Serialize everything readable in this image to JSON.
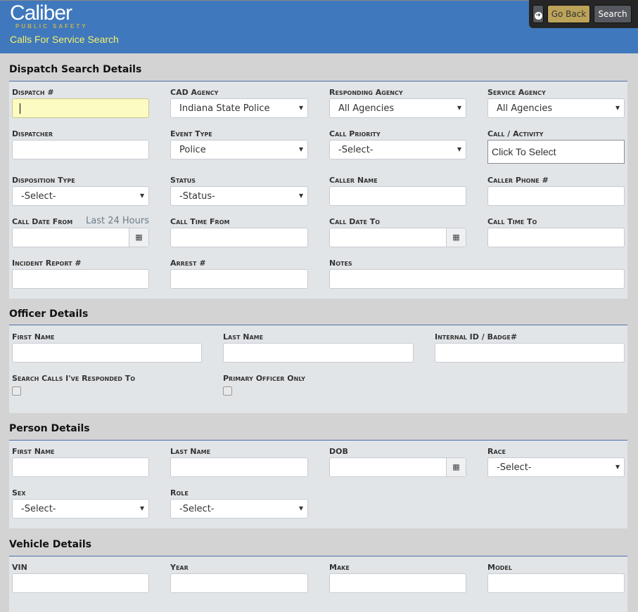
{
  "header": {
    "logo_text": "Caliber",
    "logo_sub": "PUBLIC SAFETY",
    "page_title": "Calls For Service Search",
    "go_back": "Go Back",
    "search": "Search"
  },
  "dispatch": {
    "title": "Dispatch Search Details",
    "dispatch_no": "Dispatch #",
    "cad_agency": "CAD Agency",
    "cad_agency_value": "Indiana State Police",
    "responding_agency": "Responding Agency",
    "responding_agency_value": "All Agencies",
    "service_agency": "Service Agency",
    "service_agency_value": "All Agencies",
    "dispatcher": "Dispatcher",
    "event_type": "Event Type",
    "event_type_value": "Police",
    "call_priority": "Call Priority",
    "call_priority_value": "-Select-",
    "call_activity": "Call / Activity",
    "call_activity_value": "Click To Select",
    "disposition_type": "Disposition Type",
    "disposition_type_value": "-Select-",
    "status": "Status",
    "status_value": "-Status-",
    "caller_name": "Caller Name",
    "caller_phone": "Caller Phone #",
    "call_date_from": "Call Date From",
    "last_24": "Last 24 Hours",
    "call_time_from": "Call Time From",
    "call_date_to": "Call Date To",
    "call_time_to": "Call Time To",
    "incident_report": "Incident Report #",
    "arrest": "Arrest #",
    "notes": "Notes"
  },
  "officer": {
    "title": "Officer Details",
    "first_name": "First Name",
    "last_name": "Last Name",
    "internal_id": "Internal ID / Badge#",
    "responded": "Search Calls I've Responded To",
    "primary": "Primary Officer Only"
  },
  "person": {
    "title": "Person Details",
    "first_name": "First Name",
    "last_name": "Last Name",
    "dob": "DOB",
    "race": "Race",
    "race_value": "-Select-",
    "sex": "Sex",
    "sex_value": "-Select-",
    "role": "Role",
    "role_value": "-Select-"
  },
  "vehicle": {
    "title": "Vehicle Details",
    "vin": "VIN",
    "year": "Year",
    "make": "Make",
    "model": "Model"
  }
}
